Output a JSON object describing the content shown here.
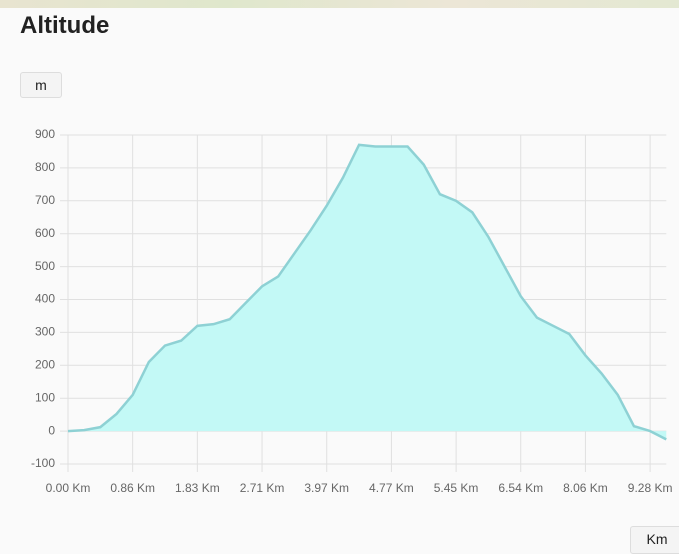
{
  "chart_data": {
    "type": "area",
    "title": "Altitude",
    "categories": [
      "0.00 Km",
      null,
      null,
      null,
      "0.86 Km",
      null,
      null,
      null,
      "1.83 Km",
      null,
      null,
      null,
      "2.71 Km",
      null,
      null,
      null,
      "3.97 Km",
      null,
      null,
      null,
      "4.77 Km",
      null,
      null,
      null,
      "5.45 Km",
      null,
      null,
      null,
      "6.54 Km",
      null,
      null,
      null,
      "8.06 Km",
      null,
      null,
      null,
      "9.28 Km",
      null
    ],
    "values": [
      0,
      3,
      12,
      52,
      110,
      210,
      260,
      275,
      320,
      325,
      340,
      390,
      440,
      470,
      540,
      610,
      685,
      770,
      870,
      865,
      865,
      865,
      810,
      720,
      700,
      665,
      590,
      500,
      410,
      345,
      320,
      295,
      230,
      175,
      110,
      15,
      0,
      -25
    ],
    "color": "#c3f9f6",
    "line_color": "#8ed1d4",
    "ylim": [
      -100,
      900
    ],
    "yticks": [
      -100,
      0,
      100,
      200,
      300,
      400,
      500,
      600,
      700,
      800,
      900
    ],
    "grid": true
  },
  "controls": {
    "y_unit": "m",
    "x_unit": "Km"
  }
}
